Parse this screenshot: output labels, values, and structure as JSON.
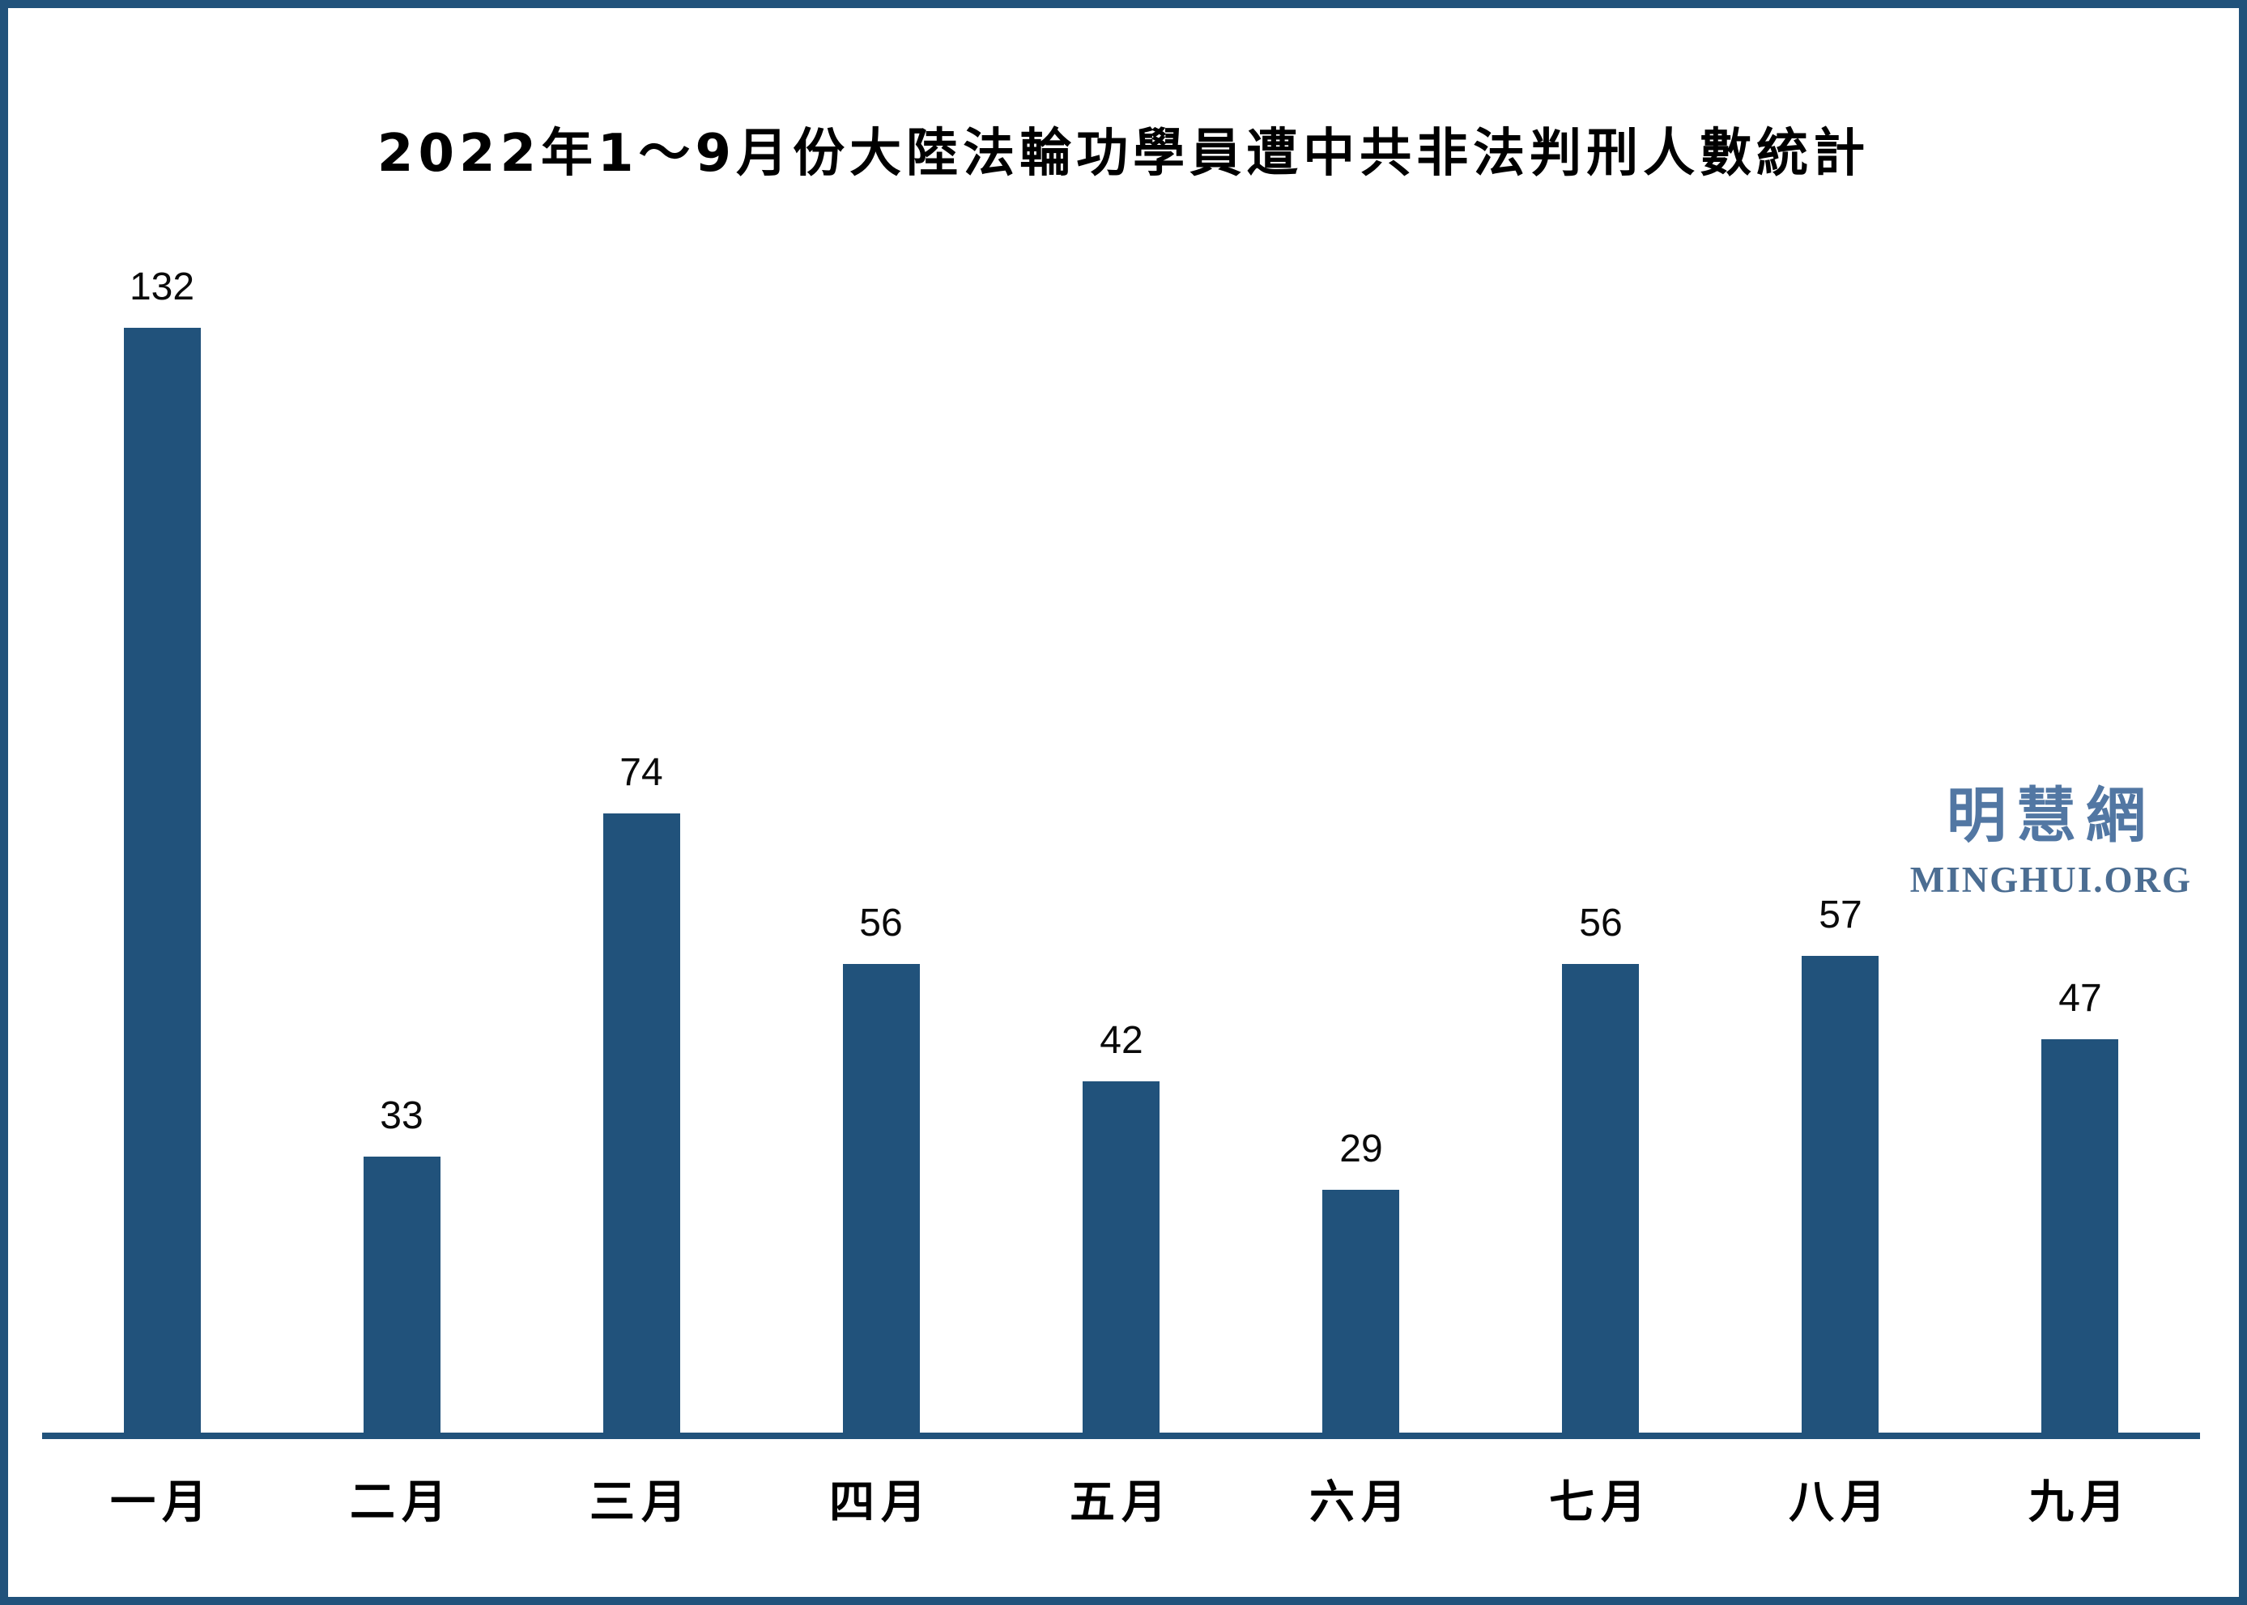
{
  "chart_data": {
    "type": "bar",
    "title": "2022年1～9月份大陸法輪功學員遭中共非法判刑人數統計",
    "categories": [
      "一月",
      "二月",
      "三月",
      "四月",
      "五月",
      "六月",
      "七月",
      "八月",
      "九月"
    ],
    "values": [
      132,
      33,
      74,
      56,
      42,
      29,
      56,
      57,
      47
    ],
    "xlabel": "",
    "ylabel": "",
    "ylim": [
      0,
      140
    ],
    "grid": false,
    "legend": false,
    "data_labels": true,
    "bar_color": "#21527B"
  },
  "watermark": {
    "cn": "明慧網",
    "en": "MINGHUI.ORG",
    "cn_color": "#5277A3",
    "en_color": "#4B6D92"
  },
  "colors": {
    "bar": "#21527B",
    "frame_border": "#21527B",
    "axis_line": "#21527B",
    "background": "#FFFFFF",
    "label_text": "#000000"
  }
}
